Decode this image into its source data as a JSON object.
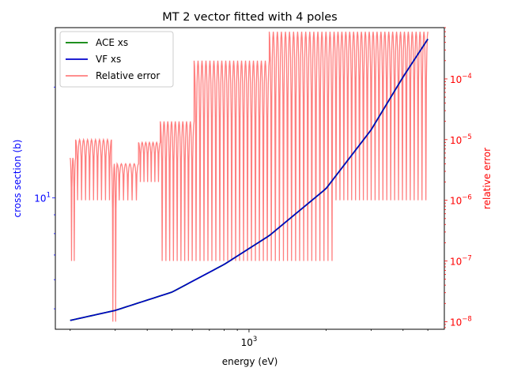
{
  "chart_data": {
    "type": "line",
    "title": "MT 2 vector fitted with 4 poles",
    "xlabel": "energy (eV)",
    "ylabel_left": "cross section (b)",
    "ylabel_right": "relative error",
    "x_scale": "log",
    "y_left_scale": "log",
    "y_right_scale": "log",
    "xlim": [
      175,
      5800
    ],
    "ylim_left": [
      4.4,
      29
    ],
    "ylim_right": [
      7.5e-09,
      0.0007
    ],
    "x_ticks": [
      {
        "value": 1000,
        "label": "10^3",
        "base": "10",
        "exp": "3"
      }
    ],
    "y_left_ticks": [
      {
        "value": 10,
        "label": "10^1",
        "base": "10",
        "exp": "1"
      }
    ],
    "y_right_ticks": [
      {
        "value": 1e-08,
        "label": "10^-8",
        "base": "10",
        "exp": "−8"
      },
      {
        "value": 1e-07,
        "label": "10^-7",
        "base": "10",
        "exp": "−7"
      },
      {
        "value": 1e-06,
        "label": "10^-6",
        "base": "10",
        "exp": "−6"
      },
      {
        "value": 1e-05,
        "label": "10^-5",
        "base": "10",
        "exp": "−5"
      },
      {
        "value": 0.0001,
        "label": "10^-4",
        "base": "10",
        "exp": "−4"
      }
    ],
    "legend_position": "top-left",
    "legend": [
      "ACE xs",
      "VF xs",
      "Relative error"
    ],
    "series": [
      {
        "name": "ACE xs",
        "axis": "left",
        "color": "#008000",
        "x": [
          200,
          300,
          500,
          800,
          1200,
          2000,
          3000,
          4000,
          5000
        ],
        "y": [
          4.65,
          4.95,
          5.55,
          6.6,
          7.9,
          10.6,
          15.3,
          21.3,
          27.0
        ]
      },
      {
        "name": "VF xs",
        "axis": "left",
        "color": "#0000cc",
        "x": [
          200,
          300,
          500,
          800,
          1200,
          2000,
          3000,
          4000,
          5000
        ],
        "y": [
          4.65,
          4.95,
          5.55,
          6.6,
          7.9,
          10.6,
          15.3,
          21.3,
          27.0
        ]
      },
      {
        "name": "Relative error",
        "axis": "right",
        "color": "#ff0000",
        "alpha": 0.5,
        "bands": [
          {
            "x": [
              200,
              210
            ],
            "env": 5e-06,
            "floor": 1e-07
          },
          {
            "x": [
              210,
              290
            ],
            "env": 1e-05,
            "floor": 1e-06
          },
          {
            "x": [
              290,
              305
            ],
            "env": 4e-06,
            "floor": 1e-08
          },
          {
            "x": [
              305,
              370
            ],
            "env": 4e-06,
            "floor": 1e-06
          },
          {
            "x": [
              370,
              450
            ],
            "env": 9e-06,
            "floor": 2e-06
          },
          {
            "x": [
              450,
              610
            ],
            "env": 2e-05,
            "floor": 1e-07
          },
          {
            "x": [
              610,
              1200
            ],
            "env": 0.0002,
            "floor": 1e-07
          },
          {
            "x": [
              1200,
              2150
            ],
            "env": 0.0006,
            "floor": 1e-07
          },
          {
            "x": [
              2150,
              5000
            ],
            "env": 0.0006,
            "floor": 1e-06
          }
        ]
      }
    ]
  }
}
